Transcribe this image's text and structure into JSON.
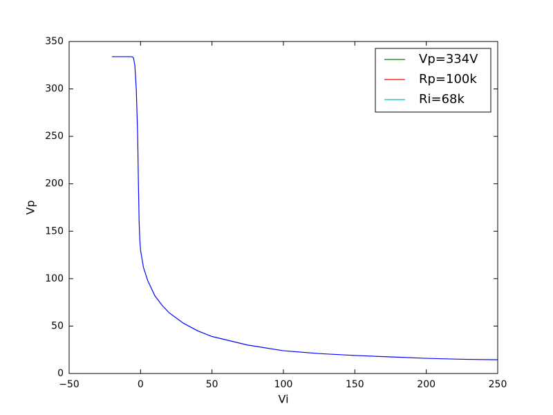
{
  "chart_data": {
    "type": "line",
    "xlabel": "Vi",
    "ylabel": "Vp",
    "x": [
      -20,
      -10,
      -6,
      -5,
      -4,
      -3,
      -2,
      -1.5,
      -1,
      -0.5,
      0,
      2,
      5,
      10,
      15,
      20,
      30,
      40,
      50,
      75,
      100,
      125,
      150,
      175,
      200,
      225,
      250
    ],
    "series": [
      {
        "color": "#0000ff",
        "values": [
          334,
          334,
          334,
          333,
          325,
          300,
          250,
          200,
          160,
          140,
          130,
          112,
          98,
          82,
          72,
          64,
          53,
          45,
          39,
          30,
          24,
          21,
          19,
          17.5,
          16,
          15,
          14.5
        ]
      }
    ],
    "legend": [
      {
        "label": "Vp=334V",
        "color": "#008000"
      },
      {
        "label": "Rp=100k",
        "color": "#ff0000"
      },
      {
        "label": "Ri=68k",
        "color": "#00bfbf"
      }
    ],
    "legend_position": "upper right",
    "xlim": [
      -50,
      250
    ],
    "xticks": [
      {
        "value": -50,
        "label": "−50"
      },
      0,
      50,
      100,
      150,
      200,
      250
    ],
    "ylim": [
      0,
      350
    ],
    "yticks": [
      0,
      50,
      100,
      150,
      200,
      250,
      300,
      350
    ],
    "grid": false
  }
}
